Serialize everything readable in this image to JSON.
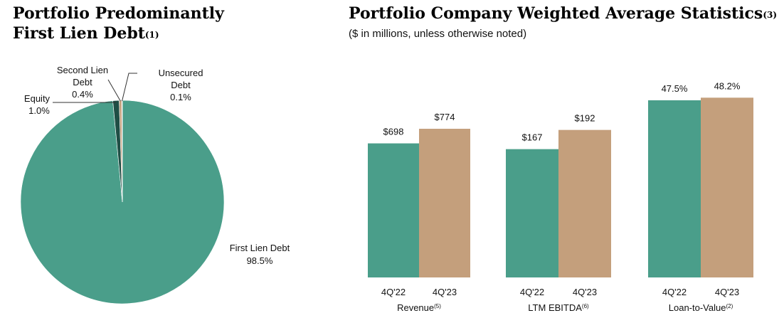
{
  "left": {
    "title_line1": "Portfolio Predominantly",
    "title_line2": "First Lien Debt",
    "title_note": "(1)"
  },
  "right": {
    "title": "Portfolio Company Weighted Average Statistics",
    "title_note": "(3)",
    "subtitle": "($ in millions, unless otherwise noted)"
  },
  "colors": {
    "teal": "#4A9E8A",
    "tan": "#C49F7C",
    "dark_teal": "#1F4E45",
    "light_tan": "#E6D6BF"
  },
  "chart_data": [
    {
      "type": "pie",
      "slices": [
        {
          "label": "First Lien Debt",
          "value": 98.5,
          "value_label": "98.5%",
          "color": "#4A9E8A"
        },
        {
          "label": "Equity",
          "value": 1.0,
          "value_label": "1.0%",
          "color": "#1F4E45"
        },
        {
          "label": "Second Lien Debt",
          "value": 0.4,
          "value_label": "0.4%",
          "color": "#C49F7C"
        },
        {
          "label": "Unsecured Debt",
          "value": 0.1,
          "value_label": "0.1%",
          "color": "#E6D6BF"
        }
      ]
    },
    {
      "type": "bar",
      "xlabel": "Revenue",
      "xlabel_note": "(5)",
      "categories": [
        "4Q'22",
        "4Q'23"
      ],
      "values": [
        698,
        774
      ],
      "value_labels": [
        "$698",
        "$774"
      ],
      "ylim": [
        0,
        1000
      ],
      "colors": [
        "#4A9E8A",
        "#C49F7C"
      ]
    },
    {
      "type": "bar",
      "xlabel": "LTM EBITDA",
      "xlabel_note": "(6)",
      "categories": [
        "4Q'22",
        "4Q'23"
      ],
      "values": [
        167,
        192
      ],
      "value_labels": [
        "$167",
        "$192"
      ],
      "ylim": [
        0,
        250
      ],
      "colors": [
        "#4A9E8A",
        "#C49F7C"
      ]
    },
    {
      "type": "bar",
      "xlabel": "Loan-to-Value",
      "xlabel_note": "(2)",
      "categories": [
        "4Q'22",
        "4Q'23"
      ],
      "values": [
        47.5,
        48.2
      ],
      "value_labels": [
        "47.5%",
        "48.2%"
      ],
      "ylim": [
        0,
        51.5
      ],
      "colors": [
        "#4A9E8A",
        "#C49F7C"
      ]
    }
  ]
}
